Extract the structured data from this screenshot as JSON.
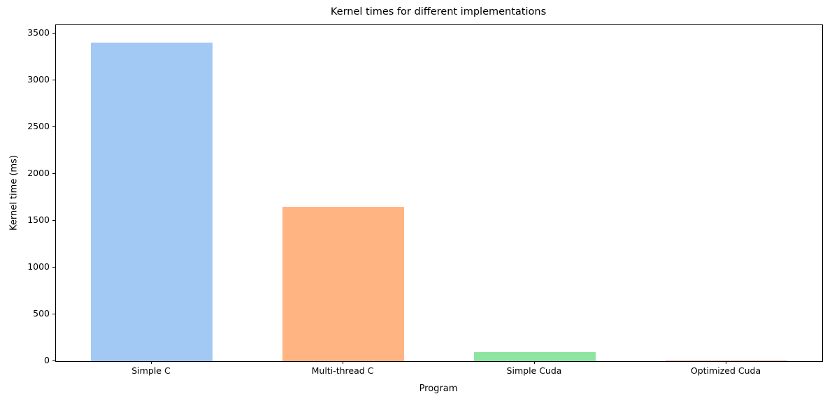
{
  "chart_data": {
    "type": "bar",
    "title": "Kernel times for different implementations",
    "xlabel": "Program",
    "ylabel": "Kernel time (ms)",
    "categories": [
      "Simple C",
      "Multi-thread C",
      "Simple Cuda",
      "Optimized Cuda"
    ],
    "values": [
      3400,
      1650,
      100,
      10
    ],
    "bar_colors": [
      "#a1c9f4",
      "#ffb482",
      "#8de5a1",
      "#ff9f9b"
    ],
    "ylim": [
      0,
      3590
    ],
    "yticks": [
      0,
      500,
      1000,
      1500,
      2000,
      2500,
      3000,
      3500
    ],
    "grid": false,
    "legend": "none",
    "plot_background": "#ffffff",
    "spine_color": "#000000"
  }
}
